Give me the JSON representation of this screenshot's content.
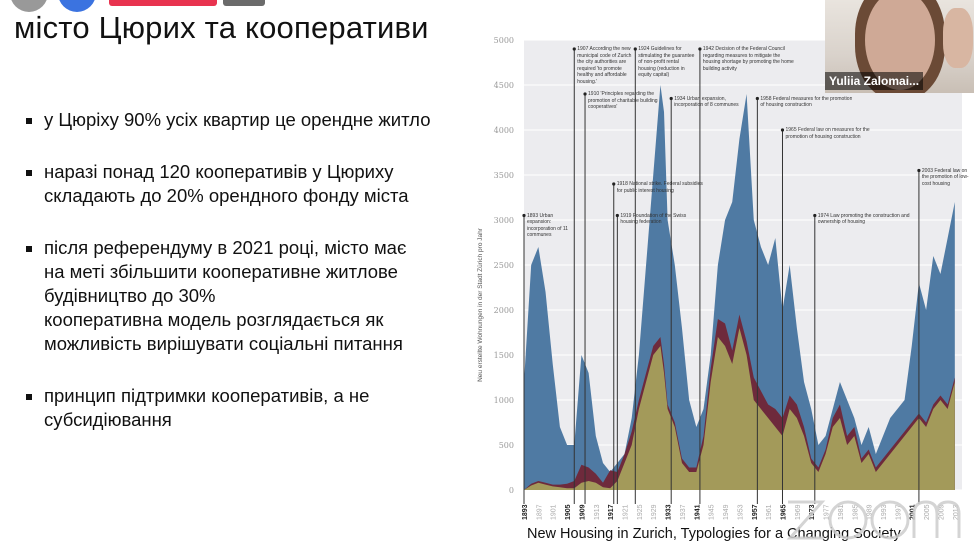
{
  "slide": {
    "title": "місто Цюрих та кооперативи",
    "bullets": [
      {
        "lines": [
          "у Цюріху 90% усіх квартир це орендне житло"
        ]
      },
      {
        "lines": [
          "наразі понад 120 кооперативів у Цюриху",
          "складають до 20% орендного фонду міста"
        ]
      },
      {
        "lines": [
          "після референдуму в 2021 році, місто має",
          "на меті збільшити кооперативне житлове",
          "будівництво до 30%",
          "кооперативна модель розглядається як",
          "можливість вирішувати соціальні питання"
        ]
      },
      {
        "lines": [
          "принцип підтримки кооперативів, а не",
          "субсидіювання"
        ]
      }
    ],
    "caption": "New Housing in Zurich, Typologies for a Changing Society"
  },
  "video": {
    "participant_name": "Yuliia Zalomai..."
  },
  "watermark": "zoom",
  "chart_data": {
    "type": "area",
    "title": "New Housing in Zurich, Typologies for a Changing Society",
    "ylabel": "Neu erstellte Wohnungen in der Stadt Zürich pro Jahr",
    "xlabel": "",
    "ylim": [
      0,
      5000
    ],
    "yticks": [
      "0",
      "500",
      "1000",
      "1500",
      "2000",
      "2500",
      "3000",
      "3500",
      "4000",
      "4500",
      "5000"
    ],
    "xticks": [
      "1893",
      "1897",
      "1901",
      "1905",
      "1909",
      "1913",
      "1917",
      "1921",
      "1925",
      "1929",
      "1933",
      "1937",
      "1941",
      "1945",
      "1949",
      "1953",
      "1957",
      "1961",
      "1965",
      "1969",
      "1973",
      "1977",
      "1981",
      "1985",
      "1989",
      "1993",
      "1997",
      "2001",
      "2005",
      "2009",
      "2013"
    ],
    "highlighted_years": [
      "1893",
      "1905",
      "1909",
      "1917",
      "1919",
      "1933",
      "1941",
      "1957",
      "1965",
      "1973",
      "2001"
    ],
    "grid": true,
    "colors": {
      "total": "#4f7aa3",
      "public": "#6e2a3c",
      "cooperative": "#a39a5a",
      "background": "#ececef"
    },
    "x": [
      1893,
      1895,
      1897,
      1899,
      1901,
      1903,
      1905,
      1907,
      1909,
      1911,
      1913,
      1915,
      1917,
      1919,
      1921,
      1923,
      1925,
      1927,
      1929,
      1931,
      1932,
      1933,
      1935,
      1937,
      1939,
      1941,
      1943,
      1945,
      1947,
      1949,
      1951,
      1953,
      1955,
      1957,
      1959,
      1961,
      1963,
      1965,
      1967,
      1969,
      1971,
      1973,
      1975,
      1977,
      1979,
      1981,
      1983,
      1985,
      1987,
      1989,
      1991,
      1993,
      1995,
      1997,
      1999,
      2001,
      2003,
      2005,
      2007,
      2009,
      2011,
      2013
    ],
    "series": [
      {
        "name": "cooperative",
        "values": [
          0,
          50,
          80,
          60,
          40,
          30,
          20,
          20,
          80,
          100,
          80,
          30,
          20,
          100,
          300,
          500,
          900,
          1200,
          1500,
          1600,
          1300,
          900,
          700,
          300,
          200,
          200,
          500,
          1200,
          1700,
          1600,
          1400,
          1800,
          1500,
          1000,
          900,
          800,
          700,
          600,
          900,
          800,
          600,
          300,
          200,
          400,
          700,
          800,
          500,
          600,
          300,
          400,
          200,
          300,
          400,
          500,
          600,
          700,
          800,
          700,
          900,
          1000,
          900,
          1200
        ]
      },
      {
        "name": "public",
        "values": [
          0,
          20,
          20,
          20,
          20,
          30,
          50,
          80,
          200,
          150,
          100,
          50,
          200,
          100,
          100,
          150,
          100,
          100,
          100,
          100,
          100,
          50,
          50,
          50,
          50,
          50,
          100,
          150,
          200,
          250,
          150,
          150,
          150,
          250,
          200,
          150,
          200,
          200,
          150,
          150,
          100,
          50,
          50,
          50,
          100,
          150,
          100,
          100,
          50,
          50,
          50,
          50,
          50,
          50,
          50,
          50,
          50,
          50,
          50,
          50,
          50,
          50
        ]
      },
      {
        "name": "total",
        "values": [
          1200,
          2500,
          2700,
          2200,
          1400,
          700,
          500,
          500,
          1500,
          1300,
          600,
          300,
          200,
          300,
          400,
          800,
          1500,
          2500,
          3500,
          4500,
          4200,
          3000,
          2500,
          1800,
          1000,
          700,
          900,
          1500,
          2500,
          3000,
          3200,
          3900,
          4400,
          3000,
          2700,
          2500,
          2800,
          2000,
          2500,
          1800,
          1200,
          900,
          500,
          600,
          900,
          1200,
          1000,
          800,
          500,
          700,
          400,
          600,
          800,
          900,
          1000,
          1600,
          2300,
          2000,
          2600,
          2400,
          2800,
          3200
        ]
      }
    ],
    "events": [
      {
        "year": "1893",
        "text": "1893 Urban expansion: incorporation of 11 communes"
      },
      {
        "year": "1907",
        "text": "1907 According the new municipal code of Zurich the city authorities are required 'to promote healthy and affordable housing.'"
      },
      {
        "year": "1910",
        "text": "1910 'Principles regarding the promotion of charitable building cooperatives'"
      },
      {
        "year": "1918",
        "text": "1918 National strike. Federal subsidies for public interest housing"
      },
      {
        "year": "1919",
        "text": "1919 Foundation of the Swiss housing federation"
      },
      {
        "year": "1924",
        "text": "1924 Guidelines for stimulating the guarantee of non-profit rental housing (reduction in equity capital)"
      },
      {
        "year": "1934",
        "text": "1934 Urban expansion, incorporation of 8 communes"
      },
      {
        "year": "1942",
        "text": "1942 Decision of the Federal Council regarding measures to mitigate the housing shortage by promoting the home building activity"
      },
      {
        "year": "1958",
        "text": "1958 Federal measures for the promotion of housing construction"
      },
      {
        "year": "1965",
        "text": "1965 Federal law on measures for the promotion of housing construction"
      },
      {
        "year": "1974",
        "text": "1974 Law promoting the construction and ownership of housing"
      },
      {
        "year": "2003",
        "text": "2003 Federal law on the promotion of low-cost housing"
      }
    ]
  }
}
